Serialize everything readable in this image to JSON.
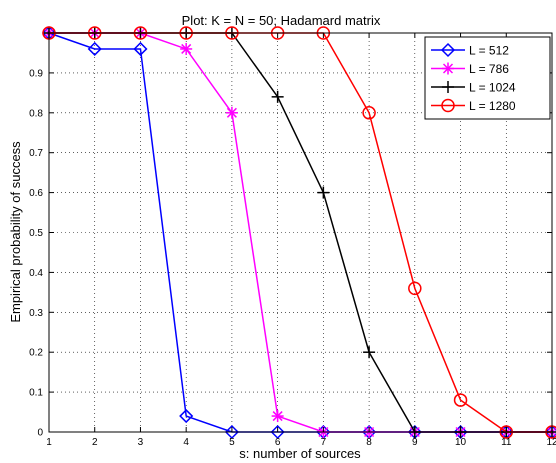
{
  "chart_data": {
    "type": "line",
    "title": "Plot: K = N = 50; Hadamard matrix",
    "xlabel": "s: number of sources",
    "ylabel": "Empirical probability of success",
    "xlim": [
      1,
      12
    ],
    "ylim": [
      0,
      1
    ],
    "xticks": [
      "1",
      "2",
      "3",
      "4",
      "5",
      "6",
      "7",
      "8",
      "9",
      "10",
      "11",
      "12"
    ],
    "yticks": [
      "0",
      "0.1",
      "0.2",
      "0.3",
      "0.4",
      "0.5",
      "0.6",
      "0.7",
      "0.8",
      "0.9"
    ],
    "grid": true,
    "legend_position": "top-right",
    "x": [
      1,
      2,
      3,
      4,
      5,
      6,
      7,
      8,
      9,
      10,
      11,
      12
    ],
    "series": [
      {
        "name": "L = 512",
        "color": "#0000ff",
        "marker": "diamond",
        "values": [
          1,
          0.96,
          0.96,
          0.04,
          0,
          0,
          0,
          0,
          0,
          0,
          0,
          0
        ]
      },
      {
        "name": "L = 786",
        "color": "#ff00ff",
        "marker": "star",
        "values": [
          1,
          1,
          1,
          0.96,
          0.8,
          0.04,
          0,
          0,
          0,
          0,
          0,
          0
        ]
      },
      {
        "name": "L = 1024",
        "color": "#000000",
        "marker": "plus",
        "values": [
          1,
          1,
          1,
          1,
          1,
          0.84,
          0.6,
          0.2,
          0,
          0,
          0,
          0
        ]
      },
      {
        "name": "L = 1280",
        "color": "#ff0000",
        "marker": "circle",
        "values": [
          1,
          1,
          1,
          1,
          1,
          1,
          1,
          0.8,
          0.36,
          0.08,
          0,
          0
        ]
      }
    ]
  }
}
